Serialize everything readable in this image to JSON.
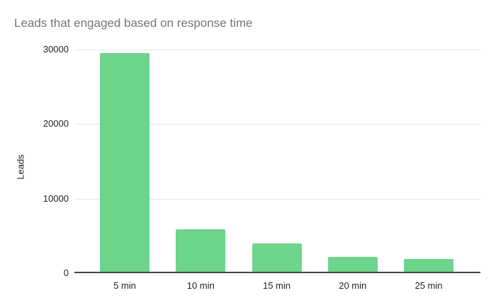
{
  "chart_data": {
    "type": "bar",
    "title": "Leads that engaged based on response time",
    "categories": [
      "5 min",
      "10 min",
      "15 min",
      "20 min",
      "25 min"
    ],
    "values": [
      29500,
      5900,
      4000,
      2200,
      1900
    ],
    "xlabel": "",
    "ylabel": "Leads",
    "ylim": [
      0,
      30000
    ],
    "yticks": [
      0,
      10000,
      20000,
      30000
    ],
    "grid": true,
    "legend": "none",
    "colors": {
      "bar": "#6dd58c",
      "title_text": "#757575",
      "axis_text": "#1f1f1f",
      "gridline": "#e6e6e6",
      "axis_line": "#424242",
      "background": "#ffffff"
    }
  }
}
